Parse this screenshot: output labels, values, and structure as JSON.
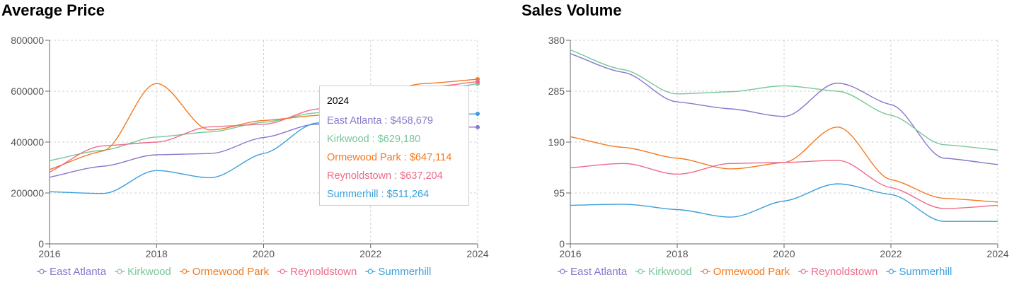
{
  "chart_data": [
    {
      "type": "line",
      "title": "Average Price",
      "x": [
        2016,
        2017,
        2018,
        2019,
        2020,
        2021,
        2022,
        2023,
        2024
      ],
      "xticks": [
        "2016",
        "2018",
        "2020",
        "2022",
        "2024"
      ],
      "ylim": [
        0,
        800000
      ],
      "yticks": [
        "0",
        "200000",
        "400000",
        "600000",
        "800000"
      ],
      "grid": true,
      "legend": "bottom",
      "series": [
        {
          "name": "East Atlanta",
          "color": "#8877cc",
          "values": [
            262000,
            305000,
            350000,
            355000,
            418000,
            470000,
            462000,
            460000,
            458679
          ]
        },
        {
          "name": "Kirkwood",
          "color": "#77c799",
          "values": [
            327000,
            368000,
            420000,
            440000,
            478000,
            515000,
            545000,
            600000,
            629180
          ]
        },
        {
          "name": "Ormewood Park",
          "color": "#f27a20",
          "values": [
            292000,
            365000,
            630000,
            448000,
            485000,
            505000,
            580000,
            630000,
            647114
          ]
        },
        {
          "name": "Reynoldstown",
          "color": "#ee6b8a",
          "values": [
            282000,
            385000,
            400000,
            460000,
            470000,
            530000,
            585000,
            615000,
            637204
          ]
        },
        {
          "name": "Summerhill",
          "color": "#3a9fdc",
          "values": [
            205000,
            198000,
            288000,
            260000,
            355000,
            475000,
            495000,
            505000,
            511264
          ]
        }
      ],
      "tooltip": {
        "title": "2024",
        "rows": [
          {
            "name": "East Atlanta",
            "value": "$458,679",
            "color": "#8877cc"
          },
          {
            "name": "Kirkwood",
            "value": "$629,180",
            "color": "#77c799"
          },
          {
            "name": "Ormewood Park",
            "value": "$647,114",
            "color": "#f27a20"
          },
          {
            "name": "Reynoldstown",
            "value": "$637,204",
            "color": "#ee6b8a"
          },
          {
            "name": "Summerhill",
            "value": "$511,264",
            "color": "#3a9fdc"
          }
        ]
      }
    },
    {
      "type": "line",
      "title": "Sales Volume",
      "x": [
        2016,
        2017,
        2018,
        2019,
        2020,
        2021,
        2022,
        2023,
        2024
      ],
      "xticks": [
        "2016",
        "2018",
        "2020",
        "2022",
        "2024"
      ],
      "ylim": [
        0,
        380
      ],
      "yticks": [
        "0",
        "95",
        "190",
        "285",
        "380"
      ],
      "grid": true,
      "legend": "bottom",
      "series": [
        {
          "name": "East Atlanta",
          "color": "#8877cc",
          "values": [
            355,
            320,
            265,
            252,
            238,
            300,
            260,
            160,
            148
          ]
        },
        {
          "name": "Kirkwood",
          "color": "#77c799",
          "values": [
            362,
            325,
            280,
            284,
            295,
            285,
            240,
            185,
            175
          ]
        },
        {
          "name": "Ormewood Park",
          "color": "#f27a20",
          "values": [
            200,
            180,
            160,
            140,
            152,
            218,
            120,
            85,
            78
          ]
        },
        {
          "name": "Reynoldstown",
          "color": "#ee6b8a",
          "values": [
            142,
            150,
            130,
            150,
            152,
            156,
            105,
            66,
            72
          ]
        },
        {
          "name": "Summerhill",
          "color": "#3a9fdc",
          "values": [
            72,
            74,
            64,
            50,
            80,
            112,
            92,
            42,
            42
          ]
        }
      ]
    }
  ]
}
